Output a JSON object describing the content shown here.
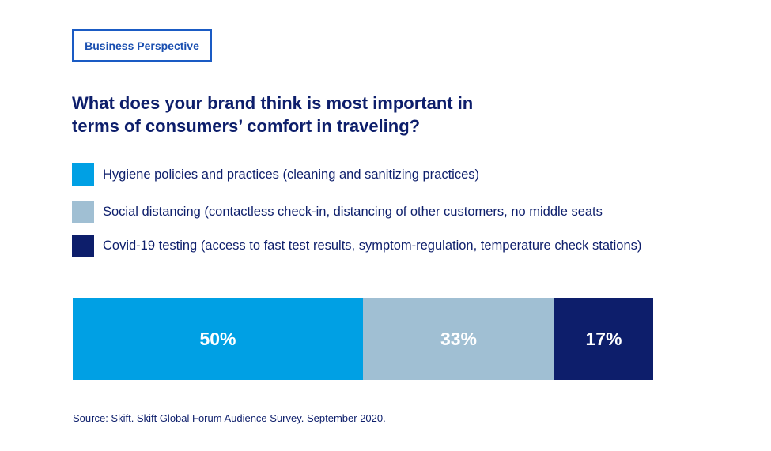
{
  "badge": "Business Perspective",
  "title_lines": [
    "What does your brand think is most important in",
    "terms of consumers’ comfort in traveling?"
  ],
  "chart_data": {
    "type": "bar",
    "stacked": true,
    "orientation": "horizontal",
    "title": "What does your brand think is most important in terms of consumers’ comfort in traveling?",
    "series": [
      {
        "name": "Hygiene policies and practices (cleaning and sanitizing practices)",
        "value": 50,
        "label": "50%",
        "color": "#00a0e4"
      },
      {
        "name": "Social distancing (contactless check-in, distancing of other customers, no middle seats",
        "value": 33,
        "label": "33%",
        "color": "#a0bfd3"
      },
      {
        "name": "Covid-19 testing (access to fast test results, symptom-regulation, temperature check stations)",
        "value": 17,
        "label": "17%",
        "color": "#0d1e6b"
      }
    ],
    "legend": "top-left",
    "grid": false
  },
  "source": "Source: Skift. Skift Global Forum Audience Survey. September 2020."
}
